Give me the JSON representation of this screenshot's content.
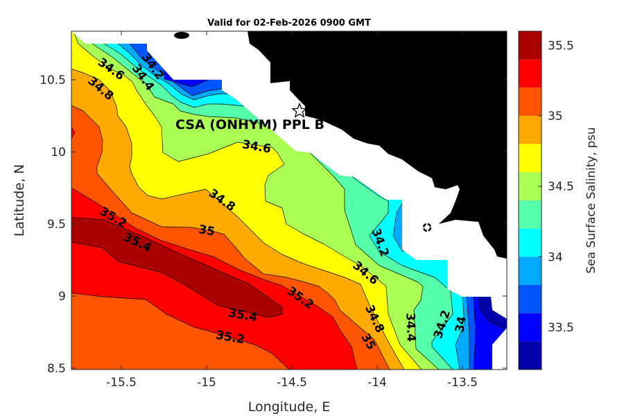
{
  "title": "Valid for 02-Feb-2026 0900 GMT",
  "chart_data": {
    "type": "heatmap",
    "subtype": "filled contour map",
    "title": "Valid for 02-Feb-2026 0900 GMT",
    "xlabel": "Longitude, E",
    "ylabel": "Latitude, N",
    "xlim": [
      -15.79,
      -13.24
    ],
    "ylim": [
      8.5,
      10.84
    ],
    "xticks": [
      -15.5,
      -15,
      -14.5,
      -14,
      -13.5
    ],
    "xtick_labels": [
      "-15.5",
      "-15",
      "-14.5",
      "-14",
      "-13.5"
    ],
    "yticks": [
      10.5,
      10,
      9.5,
      9,
      8.5
    ],
    "ytick_labels": [
      "10.5",
      "10",
      "9.5",
      "9",
      "8.5"
    ],
    "grid": false,
    "colorbar": {
      "label": "Sea Surface Salinity, psu",
      "range": [
        33.2,
        35.6
      ],
      "ticks": [
        35.5,
        35,
        34.5,
        34,
        33.5
      ],
      "tick_labels": [
        "35.5",
        "35",
        "34.5",
        "34",
        "33.5"
      ],
      "levels": [
        33.2,
        33.4,
        33.6,
        33.8,
        34.0,
        34.2,
        34.4,
        34.6,
        34.8,
        35.0,
        35.2,
        35.4,
        35.6
      ],
      "colors": [
        "#0000aa",
        "#0000ff",
        "#0055ff",
        "#00aaff",
        "#00ffff",
        "#55ffaa",
        "#aaff55",
        "#ffff00",
        "#ffaa00",
        "#ff5500",
        "#ff0000",
        "#aa0000"
      ],
      "placement": "right"
    },
    "contour_labels": [
      "34.6",
      "34.2",
      "34.4",
      "34.8",
      "34.6",
      "34.8",
      "35",
      "35.2",
      "35.4",
      "35.2",
      "35.4",
      "35.2",
      "34.2",
      "34.6",
      "34.8",
      "35",
      "34.4",
      "34.2",
      "34"
    ],
    "annotation": {
      "text": "CSA (ONHYM) PPL B",
      "marker": "star"
    },
    "land_color": "#000000",
    "no_data_color": "#ffffff"
  }
}
